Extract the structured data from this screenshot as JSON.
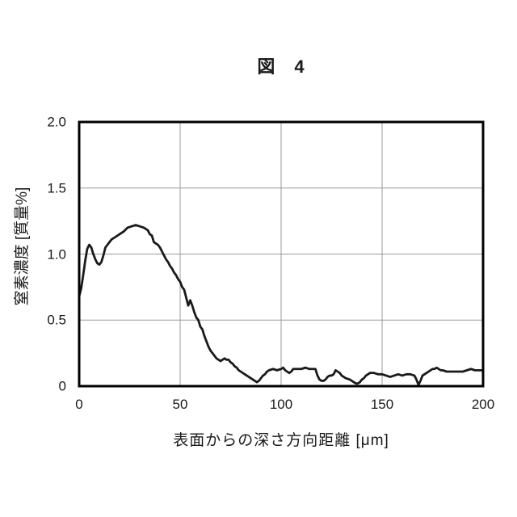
{
  "page": {
    "background": "#ffffff",
    "figure_label": "図　4"
  },
  "chart_data": {
    "type": "line",
    "title": "図 4",
    "xlabel": "表面からの深さ方向距離 [μm]",
    "ylabel": "窒素濃度 [質量%]",
    "xlim": [
      0,
      200
    ],
    "ylim": [
      0,
      2.0
    ],
    "xticks": {
      "values": [
        0,
        50,
        100,
        150,
        200
      ],
      "labels": [
        "0",
        "50",
        "100",
        "150",
        "200"
      ]
    },
    "yticks": {
      "values": [
        0,
        0.5,
        1.0,
        1.5,
        2.0
      ],
      "labels": [
        "0",
        "0.5",
        "1.0",
        "1.5",
        "2.0"
      ]
    },
    "grid": true,
    "legend": "none",
    "gridline_color": "#9b9b9b",
    "frame_color": "#000000",
    "line_color": "#1a1a1a",
    "series": [
      {
        "name": "窒素濃度",
        "points": [
          [
            0,
            0.68
          ],
          [
            1,
            0.74
          ],
          [
            2,
            0.84
          ],
          [
            3,
            0.95
          ],
          [
            4,
            1.04
          ],
          [
            5,
            1.07
          ],
          [
            6,
            1.05
          ],
          [
            7,
            1.0
          ],
          [
            8,
            0.96
          ],
          [
            9,
            0.93
          ],
          [
            10,
            0.92
          ],
          [
            11,
            0.94
          ],
          [
            12,
            0.99
          ],
          [
            13,
            1.05
          ],
          [
            14,
            1.07
          ],
          [
            15,
            1.09
          ],
          [
            16,
            1.11
          ],
          [
            17,
            1.12
          ],
          [
            18,
            1.13
          ],
          [
            19,
            1.14
          ],
          [
            20,
            1.15
          ],
          [
            22,
            1.17
          ],
          [
            24,
            1.2
          ],
          [
            26,
            1.21
          ],
          [
            28,
            1.22
          ],
          [
            30,
            1.21
          ],
          [
            32,
            1.2
          ],
          [
            34,
            1.18
          ],
          [
            35,
            1.15
          ],
          [
            36,
            1.14
          ],
          [
            37,
            1.09
          ],
          [
            38,
            1.08
          ],
          [
            39,
            1.07
          ],
          [
            40,
            1.05
          ],
          [
            41,
            1.02
          ],
          [
            42,
            0.99
          ],
          [
            43,
            0.96
          ],
          [
            44,
            0.94
          ],
          [
            45,
            0.91
          ],
          [
            46,
            0.89
          ],
          [
            47,
            0.86
          ],
          [
            48,
            0.84
          ],
          [
            49,
            0.81
          ],
          [
            50,
            0.79
          ],
          [
            51,
            0.75
          ],
          [
            52,
            0.73
          ],
          [
            53,
            0.67
          ],
          [
            54,
            0.61
          ],
          [
            55,
            0.65
          ],
          [
            56,
            0.61
          ],
          [
            57,
            0.56
          ],
          [
            58,
            0.52
          ],
          [
            59,
            0.5
          ],
          [
            60,
            0.45
          ],
          [
            61,
            0.43
          ],
          [
            62,
            0.38
          ],
          [
            63,
            0.34
          ],
          [
            64,
            0.3
          ],
          [
            65,
            0.27
          ],
          [
            66,
            0.25
          ],
          [
            67,
            0.23
          ],
          [
            68,
            0.21
          ],
          [
            69,
            0.2
          ],
          [
            70,
            0.19
          ],
          [
            71,
            0.2
          ],
          [
            72,
            0.21
          ],
          [
            73,
            0.2
          ],
          [
            74,
            0.2
          ],
          [
            75,
            0.18
          ],
          [
            76,
            0.17
          ],
          [
            77,
            0.15
          ],
          [
            78,
            0.14
          ],
          [
            79,
            0.12
          ],
          [
            80,
            0.11
          ],
          [
            82,
            0.09
          ],
          [
            84,
            0.07
          ],
          [
            86,
            0.05
          ],
          [
            88,
            0.03
          ],
          [
            89,
            0.04
          ],
          [
            90,
            0.06
          ],
          [
            91,
            0.08
          ],
          [
            92,
            0.09
          ],
          [
            93,
            0.11
          ],
          [
            94,
            0.12
          ],
          [
            96,
            0.13
          ],
          [
            98,
            0.12
          ],
          [
            100,
            0.13
          ],
          [
            101,
            0.14
          ],
          [
            102,
            0.12
          ],
          [
            103,
            0.11
          ],
          [
            104,
            0.1
          ],
          [
            105,
            0.11
          ],
          [
            106,
            0.13
          ],
          [
            108,
            0.13
          ],
          [
            110,
            0.13
          ],
          [
            112,
            0.14
          ],
          [
            114,
            0.13
          ],
          [
            116,
            0.13
          ],
          [
            117,
            0.13
          ],
          [
            118,
            0.08
          ],
          [
            119,
            0.05
          ],
          [
            120,
            0.04
          ],
          [
            121,
            0.04
          ],
          [
            122,
            0.05
          ],
          [
            123,
            0.07
          ],
          [
            124,
            0.08
          ],
          [
            125,
            0.08
          ],
          [
            126,
            0.09
          ],
          [
            127,
            0.12
          ],
          [
            128,
            0.11
          ],
          [
            129,
            0.1
          ],
          [
            130,
            0.08
          ],
          [
            131,
            0.07
          ],
          [
            132,
            0.06
          ],
          [
            134,
            0.05
          ],
          [
            136,
            0.03
          ],
          [
            137,
            0.02
          ],
          [
            138,
            0.02
          ],
          [
            139,
            0.03
          ],
          [
            140,
            0.05
          ],
          [
            141,
            0.06
          ],
          [
            142,
            0.08
          ],
          [
            143,
            0.09
          ],
          [
            144,
            0.1
          ],
          [
            146,
            0.1
          ],
          [
            148,
            0.09
          ],
          [
            150,
            0.09
          ],
          [
            152,
            0.08
          ],
          [
            154,
            0.07
          ],
          [
            156,
            0.08
          ],
          [
            158,
            0.09
          ],
          [
            160,
            0.08
          ],
          [
            162,
            0.09
          ],
          [
            164,
            0.09
          ],
          [
            166,
            0.08
          ],
          [
            167,
            0.05
          ],
          [
            168,
            0.01
          ],
          [
            169,
            0.04
          ],
          [
            170,
            0.08
          ],
          [
            171,
            0.09
          ],
          [
            172,
            0.1
          ],
          [
            173,
            0.11
          ],
          [
            174,
            0.12
          ],
          [
            175,
            0.13
          ],
          [
            176,
            0.13
          ],
          [
            177,
            0.14
          ],
          [
            178,
            0.13
          ],
          [
            179,
            0.12
          ],
          [
            180,
            0.12
          ],
          [
            182,
            0.11
          ],
          [
            184,
            0.11
          ],
          [
            186,
            0.11
          ],
          [
            188,
            0.11
          ],
          [
            190,
            0.11
          ],
          [
            192,
            0.12
          ],
          [
            194,
            0.13
          ],
          [
            196,
            0.12
          ],
          [
            198,
            0.12
          ],
          [
            200,
            0.12
          ]
        ]
      }
    ]
  }
}
